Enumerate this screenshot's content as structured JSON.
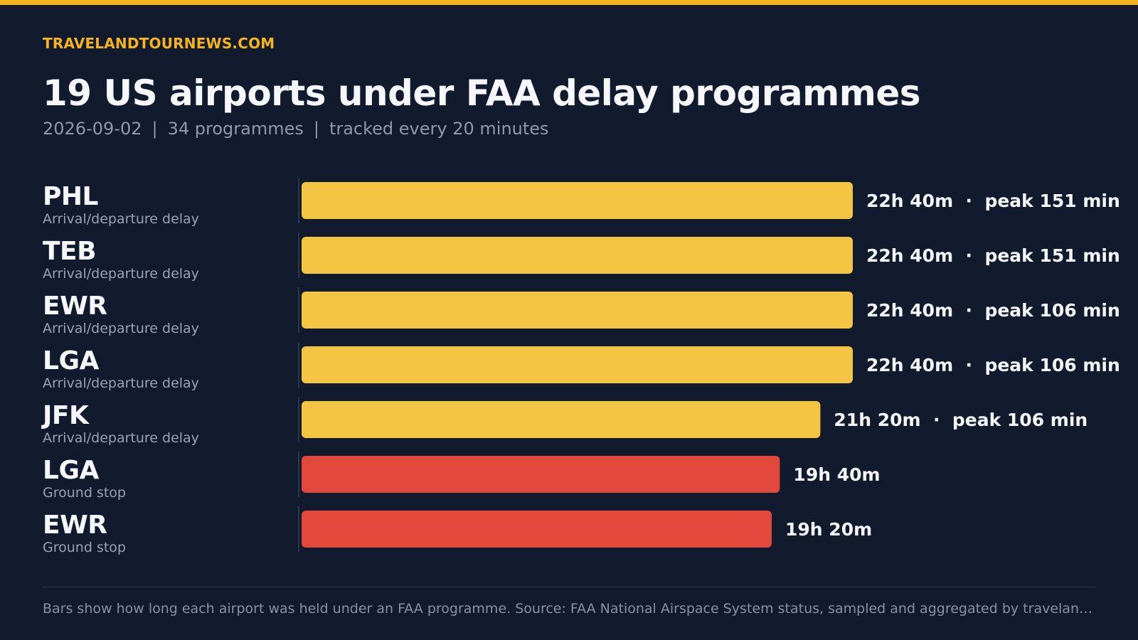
{
  "header": {
    "site": "TRAVELANDTOURNEWS.COM",
    "title": "19 US airports under FAA delay programmes",
    "subtitle_parts": [
      "2026-09-02",
      "34 programmes",
      "tracked every 20 minutes"
    ],
    "subtitle_separator": "|"
  },
  "colors": {
    "accent": "#f5b41c",
    "delay_bar": "#f4c542",
    "ground_stop_bar": "#e2483b",
    "background": "#111b2d"
  },
  "chart_data": {
    "type": "bar",
    "orientation": "horizontal",
    "value_unit": "minutes",
    "categories": [
      "PHL",
      "TEB",
      "EWR",
      "LGA",
      "JFK",
      "LGA",
      "EWR"
    ],
    "programme_types": [
      "Arrival/departure delay",
      "Arrival/departure delay",
      "Arrival/departure delay",
      "Arrival/departure delay",
      "Arrival/departure delay",
      "Ground stop",
      "Ground stop"
    ],
    "values": [
      1360,
      1360,
      1360,
      1360,
      1280,
      1180,
      1160
    ],
    "value_labels": [
      "22h 40m  ·  peak 151 min",
      "22h 40m  ·  peak 151 min",
      "22h 40m  ·  peak 106 min",
      "22h 40m  ·  peak 106 min",
      "21h 20m  ·  peak 106 min",
      "19h 40m",
      "19h 20m"
    ],
    "bar_colors": [
      "#f4c542",
      "#f4c542",
      "#f4c542",
      "#f4c542",
      "#f4c542",
      "#e2483b",
      "#e2483b"
    ],
    "xlim": [
      0,
      1360
    ],
    "grid": false,
    "legend": "none"
  },
  "footer": {
    "note": "Bars show how long each airport was held under an FAA programme. Source: FAA National Airspace System status, sampled and aggregated by travelandtour…"
  }
}
